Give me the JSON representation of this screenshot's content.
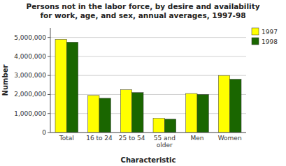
{
  "chart_data": {
    "type": "bar",
    "title": "Persons not in the labor force, by desire and availability\nfor work, age, and sex, annual averages, 1997-98",
    "xlabel": "Characteristic",
    "ylabel": "Number",
    "categories": [
      "Total",
      "16 to 24",
      "25 to 54",
      "55 and\nolder",
      "Men",
      "Women"
    ],
    "series": [
      {
        "name": "1997",
        "color": "#ffff00",
        "values": [
          4900000,
          1950000,
          2250000,
          750000,
          2050000,
          3000000
        ]
      },
      {
        "name": "1998",
        "color": "#1a6600",
        "values": [
          4750000,
          1800000,
          2100000,
          700000,
          2000000,
          2800000
        ]
      }
    ],
    "ylim": [
      0,
      5500000
    ],
    "yticks": [
      0,
      {
        "value": 1000000,
        "label": "1,000,000"
      },
      {
        "value": 2000000,
        "label": "2,000,000"
      },
      {
        "value": 3000000,
        "label": "3,000,000"
      },
      {
        "value": 4000000,
        "label": "4,000,000"
      },
      {
        "value": 5000000,
        "label": "5,000,000"
      }
    ],
    "grid": true,
    "legend": "upper right"
  }
}
